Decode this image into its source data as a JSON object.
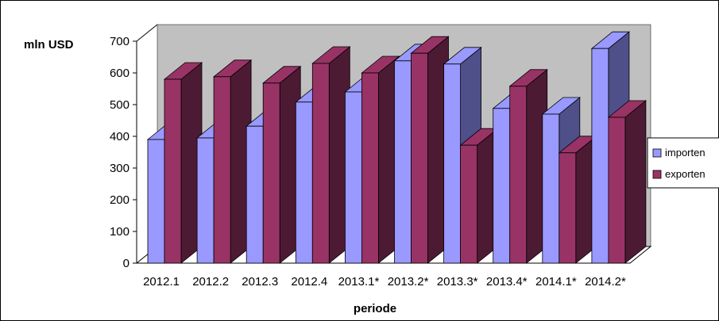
{
  "chart_data": {
    "type": "bar",
    "categories": [
      "2012.1",
      "2012.2",
      "2012.3",
      "2012.4",
      "2013.1*",
      "2013.2*",
      "2013.3*",
      "2013.4*",
      "2014.1*",
      "2014.2*"
    ],
    "series": [
      {
        "name": "importen",
        "values": [
          390,
          395,
          432,
          508,
          540,
          638,
          628,
          488,
          470,
          677
        ]
      },
      {
        "name": "exporten",
        "values": [
          580,
          588,
          568,
          630,
          600,
          662,
          372,
          558,
          348,
          460
        ]
      }
    ],
    "xlabel": "periode",
    "ylabel": "mln USD",
    "ylim": [
      0,
      700
    ],
    "yticks": [
      0,
      100,
      200,
      300,
      400,
      500,
      600,
      700
    ],
    "grid": false,
    "legend": "right",
    "colors": {
      "importen_front": "#9999ff",
      "importen_side": "#4f4f8a",
      "exporten_front": "#993366",
      "exporten_side": "#4d1a33",
      "back_wall": "#c0c0c0"
    }
  }
}
